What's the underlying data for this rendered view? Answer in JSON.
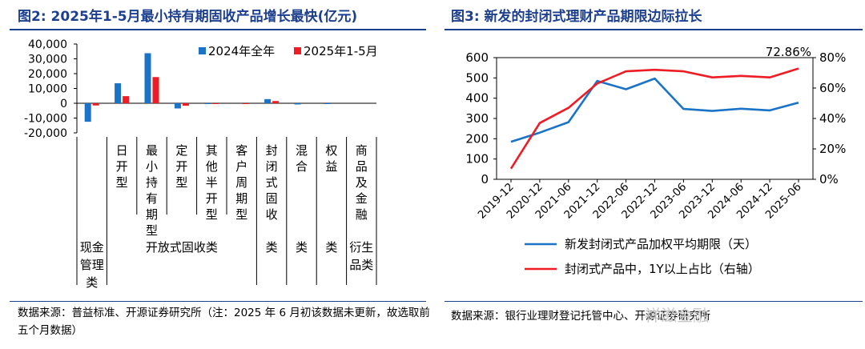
{
  "left": {
    "title": "图2:  2025年1-5月最小持有期固收产品增长最快(亿元)",
    "source": "数据来源：普益标准、开源证券研究所（注：2025 年 6 月初该数据未更新，故选取前五个月数据）",
    "chart_data": {
      "type": "bar",
      "series": [
        {
          "name": "2024年全年",
          "color": "#1a73c6",
          "values": [
            -12500,
            13500,
            33800,
            -3500,
            -300,
            0,
            2800,
            -800,
            -200,
            0
          ]
        },
        {
          "name": "2025年1-5月",
          "color": "#ee1c25",
          "values": [
            -1500,
            4800,
            17700,
            -1700,
            -300,
            -500,
            1500,
            0,
            0,
            0
          ]
        }
      ],
      "ylim": [
        -20000,
        40000
      ],
      "yticks": [
        "40,000",
        "30,000",
        "20,000",
        "10,000",
        "0",
        "-10,000",
        "-20,000"
      ],
      "category_labels": [
        "",
        "日开型",
        "最小持有期型",
        "定开型",
        "其他半开型",
        "客户周期型",
        "封闭式固收",
        "混合",
        "权益",
        "商品及金融"
      ],
      "group_labels": [
        "现金管理类",
        "开放式固收类",
        "类",
        "类",
        "类",
        "衍生品类"
      ],
      "legend_position": "top-right"
    }
  },
  "right": {
    "title": "图3:  新发的封闭式理财产品期限边际拉长",
    "source": "数据来源：银行业理财登记托管中心、开源证券研究所",
    "watermark": "祥滋金融",
    "chart_data": {
      "type": "line",
      "x": [
        "2019-12",
        "2020-12",
        "2021-06",
        "2021-12",
        "2022-06",
        "2022-12",
        "2023-06",
        "2023-12",
        "2024-06",
        "2024-12",
        "2025-06"
      ],
      "series": [
        {
          "name": "新发封闭式产品加权平均期限（天）",
          "color": "#1a73c6",
          "axis": "left",
          "values": [
            185,
            230,
            282,
            485,
            444,
            497,
            347,
            337,
            348,
            340,
            378
          ]
        },
        {
          "name": "封闭式产品中，1Y以上占比（右轴）",
          "color": "#ee1c25",
          "axis": "right",
          "values": [
            0.07,
            0.37,
            0.47,
            0.63,
            0.71,
            0.72,
            0.71,
            0.67,
            0.68,
            0.67,
            0.7286
          ]
        }
      ],
      "ylim_left": [
        0,
        600
      ],
      "ylim_right": [
        0,
        0.8
      ],
      "yticks_left": [
        "0",
        "100",
        "200",
        "300",
        "400",
        "500",
        "600"
      ],
      "yticks_right": [
        "0%",
        "20%",
        "40%",
        "60%",
        "80%"
      ],
      "annotation": "72.86%",
      "legend_position": "bottom"
    }
  }
}
